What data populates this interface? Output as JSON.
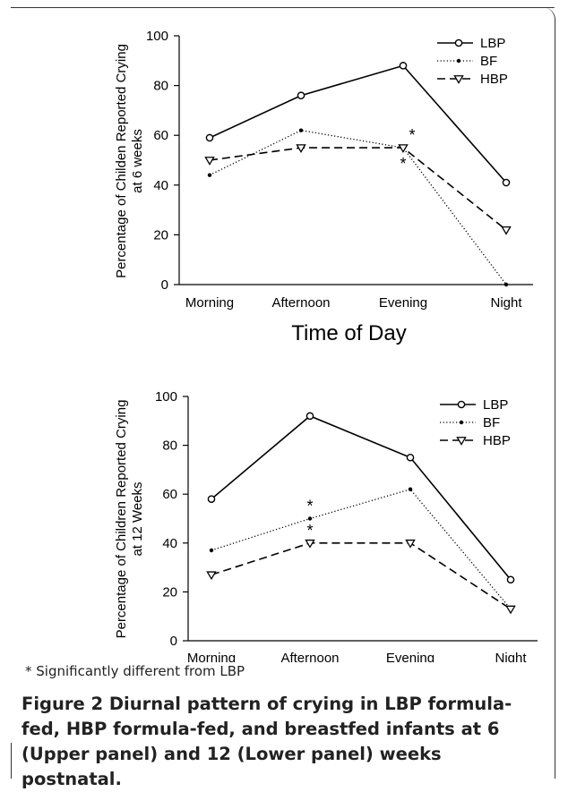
{
  "chart_data": [
    {
      "type": "line",
      "categories": [
        "Morning",
        "Afternoon",
        "Evening",
        "Night"
      ],
      "series": [
        {
          "name": "LBP",
          "values": [
            59,
            76,
            88,
            41
          ],
          "style": "solid",
          "marker": "circle"
        },
        {
          "name": "BF",
          "values": [
            44,
            62,
            55,
            0
          ],
          "style": "dotted",
          "marker": "dot"
        },
        {
          "name": "HBP",
          "values": [
            50,
            55,
            55,
            22
          ],
          "style": "dashed",
          "marker": "triangle"
        }
      ],
      "annotations": [
        {
          "text": "*",
          "category": "Evening",
          "series": "BF",
          "position": "above"
        },
        {
          "text": "*",
          "category": "Evening",
          "series": "HBP",
          "position": "below"
        }
      ],
      "xlabel": "Time of Day",
      "ylabel": "Percentage of Childen Reported Crying at 6 weeks",
      "ylim": [
        0,
        100
      ],
      "yticks": [
        0,
        20,
        40,
        60,
        80,
        100
      ],
      "grid": false,
      "legend": "top-right"
    },
    {
      "type": "line",
      "categories": [
        "Morning",
        "Afternoon",
        "Evening",
        "Night"
      ],
      "series": [
        {
          "name": "LBP",
          "values": [
            58,
            92,
            75,
            25
          ],
          "style": "solid",
          "marker": "circle"
        },
        {
          "name": "BF",
          "values": [
            37,
            50,
            62,
            13
          ],
          "style": "dotted",
          "marker": "dot"
        },
        {
          "name": "HBP",
          "values": [
            27,
            40,
            40,
            13
          ],
          "style": "dashed",
          "marker": "triangle"
        }
      ],
      "annotations": [
        {
          "text": "*",
          "category": "Afternoon",
          "series": "BF",
          "position": "above"
        },
        {
          "text": "*",
          "category": "Afternoon",
          "series": "HBP",
          "position": "above"
        }
      ],
      "xlabel": "Time of Day",
      "ylabel": "Percentage of Children Reported Crying at 12 Weeks",
      "ylim": [
        0,
        100
      ],
      "yticks": [
        0,
        20,
        40,
        60,
        80,
        100
      ],
      "grid": false,
      "legend": "top-right"
    }
  ],
  "note": "* Significantly different from LBP",
  "caption": {
    "label": "Figure 2",
    "text": "Diurnal pattern of crying in LBP formula-fed, HBP formula-fed, and breastfed infants at 6 (Upper panel) and 12 (Lower panel) weeks postnatal."
  }
}
